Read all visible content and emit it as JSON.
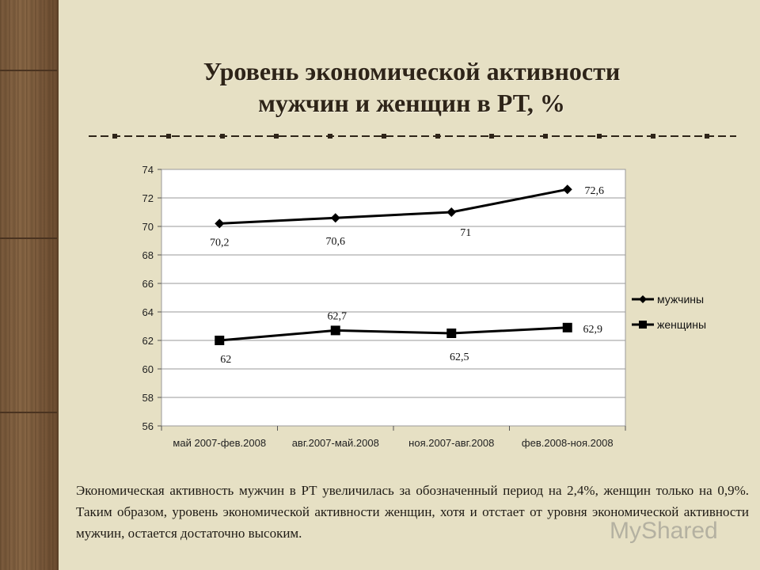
{
  "title_line1": "Уровень экономической активности",
  "title_line2": "мужчин и женщин в РТ, %",
  "caption": "Экономическая активность мужчин в РТ увеличилась за обозначенный период на 2,4%, женщин только на 0,9%. Таким образом, уровень экономической активности женщин, хотя и отстает от уровня экономической активности мужчин, остается достаточно высоким.",
  "watermark": "MyShared",
  "colors": {
    "background": "#e6e0c4",
    "plot_bg": "#ffffff",
    "line": "#000000",
    "title": "#2e2418"
  },
  "chart_data": {
    "type": "line",
    "title": "Уровень экономической активности мужчин и женщин в РТ, %",
    "categories": [
      "май 2007-фев.2008",
      "авг.2007-май.2008",
      "ноя.2007-авг.2008",
      "фев.2008-ноя.2008"
    ],
    "ylim": [
      56,
      74
    ],
    "yticks": [
      "56",
      "58",
      "60",
      "62",
      "64",
      "66",
      "68",
      "70",
      "72",
      "74"
    ],
    "grid": true,
    "legend_position": "right",
    "series": [
      {
        "name": "мужчины",
        "marker": "diamond",
        "values": [
          70.2,
          70.6,
          71,
          72.6
        ],
        "labels": [
          "70,2",
          "70,6",
          "71",
          "72,6"
        ]
      },
      {
        "name": "женщины",
        "marker": "square",
        "values": [
          62,
          62.7,
          62.5,
          62.9
        ],
        "labels": [
          "62",
          "62,7",
          "62,5",
          "62,9"
        ]
      }
    ]
  }
}
